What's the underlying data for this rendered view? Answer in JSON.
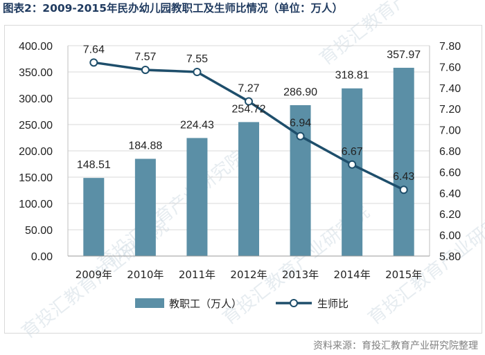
{
  "title": "图表2：2009-2015年民办幼儿园教职工及生师比情况（单位：万人）",
  "source": "资料来源：育投汇教育产业研究院整理",
  "watermark": "育投汇教育产业研究院",
  "colors": {
    "bar": "#5b8fa6",
    "line": "#1e4e6b",
    "marker_fill": "#ffffff",
    "grid": "#d9d9d9",
    "title": "#1f3a5f"
  },
  "chart_data": {
    "type": "bar",
    "categories": [
      "2009年",
      "2010年",
      "2011年",
      "2012年",
      "2013年",
      "2014年",
      "2015年"
    ],
    "series": [
      {
        "name": "教职工（万人）",
        "type": "bar",
        "axis": "left",
        "values": [
          148.51,
          184.88,
          224.43,
          254.72,
          286.9,
          318.81,
          357.97
        ],
        "labels": [
          "148.51",
          "184.88",
          "224.43",
          "254.72",
          "286.90",
          "318.81",
          "357.97"
        ]
      },
      {
        "name": "生师比",
        "type": "line",
        "axis": "right",
        "values": [
          7.64,
          7.57,
          7.55,
          7.27,
          6.94,
          6.67,
          6.43
        ],
        "labels": [
          "7.64",
          "7.57",
          "7.55",
          "7.27",
          "6.94",
          "6.67",
          "6.43"
        ]
      }
    ],
    "y_left": {
      "min": 0,
      "max": 400,
      "ticks": [
        0,
        50,
        100,
        150,
        200,
        250,
        300,
        350,
        400
      ],
      "tick_labels": [
        "0.00",
        "50.00",
        "100.00",
        "150.00",
        "200.00",
        "250.00",
        "300.00",
        "350.00",
        "400.00"
      ]
    },
    "y_right": {
      "min": 5.8,
      "max": 7.8,
      "ticks": [
        5.8,
        6.0,
        6.2,
        6.4,
        6.6,
        6.8,
        7.0,
        7.2,
        7.4,
        7.6,
        7.8
      ],
      "tick_labels": [
        "5.80",
        "6.00",
        "6.20",
        "6.40",
        "6.60",
        "6.80",
        "7.00",
        "7.20",
        "7.40",
        "7.60",
        "7.80"
      ]
    },
    "grid": true,
    "legend_position": "bottom"
  }
}
